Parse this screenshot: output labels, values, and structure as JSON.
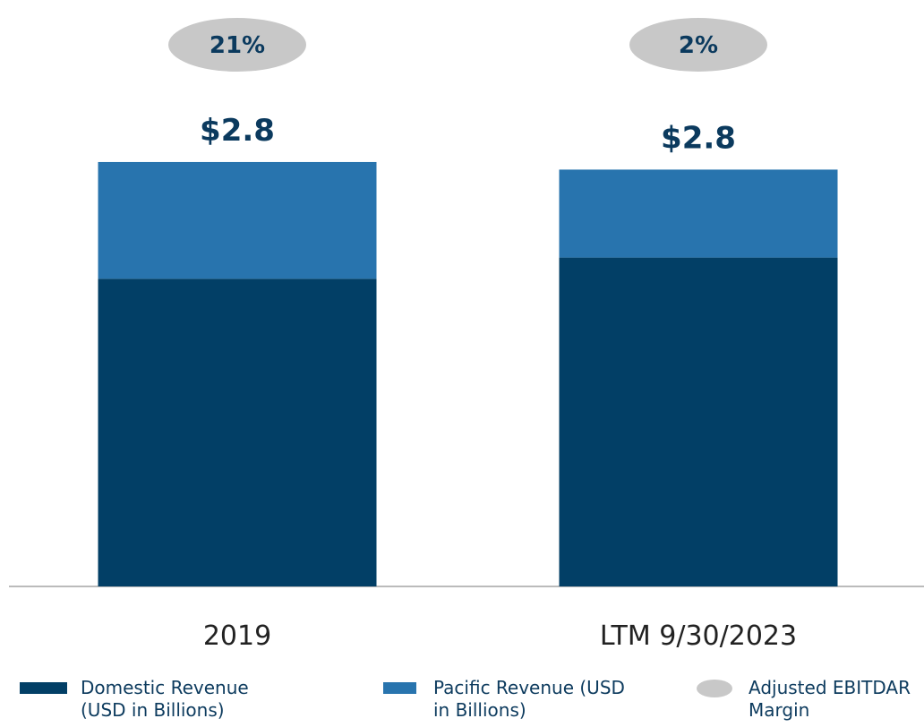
{
  "chart_data": {
    "type": "stacked_bar",
    "categories": [
      "2019",
      "LTM 9/30/2023"
    ],
    "series": [
      {
        "name": "Domestic Revenue (USD in Billions)",
        "color": "#023f66",
        "values": [
          2.03,
          2.17
        ]
      },
      {
        "name": "Pacific Revenue (USD in Billions)",
        "color": "#2874ae",
        "values": [
          0.77,
          0.58
        ]
      }
    ],
    "totals": [
      2.8,
      2.75
    ],
    "total_labels": [
      "$2.8",
      "$2.8"
    ],
    "margin": {
      "name": "Adjusted EBITDAR Margin",
      "color": "#c8c8c8",
      "values": [
        21,
        2
      ],
      "value_labels": [
        "21%",
        "2%"
      ]
    }
  }
}
